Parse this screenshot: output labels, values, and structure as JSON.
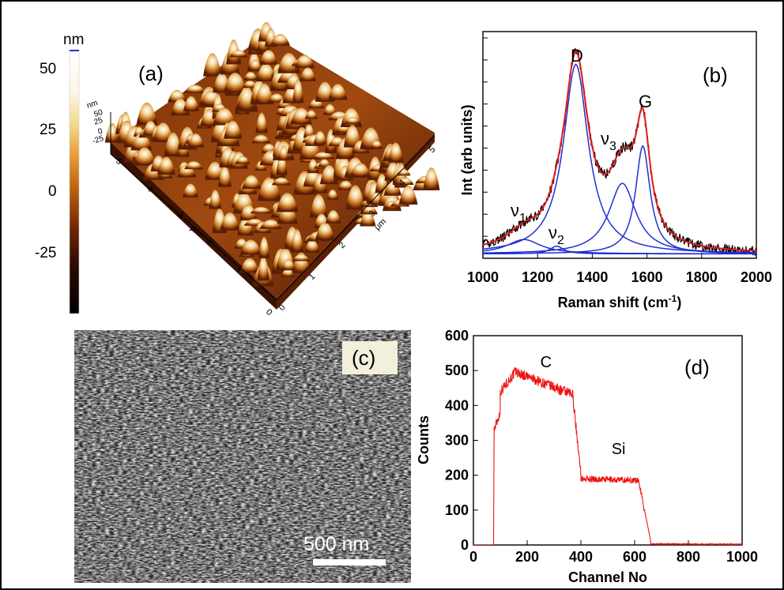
{
  "colors": {
    "afm_colormap": [
      "#000000",
      "#3a0e02",
      "#7a2c05",
      "#b85a10",
      "#e3922e",
      "#f7d27a",
      "#fffbe6",
      "#ffffff"
    ],
    "fit_blue": "#1f2fd6",
    "envelope_red": "#e01b1b",
    "raw_black": "#000000",
    "rbs_red": "#ee1111"
  },
  "panel_a": {
    "label": "(a)",
    "colorbar": {
      "unit": "nm",
      "ticks": [
        "50",
        "25",
        "0",
        "-25"
      ]
    },
    "surface_z_unit": "nm",
    "surface_z_ticks": [
      "50",
      "25",
      "0",
      "-25"
    ],
    "axis_unit_left": "μm",
    "axis_unit_right": "μm",
    "left_axis_ticks": [
      "5",
      "4",
      "3",
      "2",
      "1",
      "0"
    ],
    "right_axis_ticks": [
      "5",
      "4",
      "3",
      "2",
      "1",
      "0"
    ]
  },
  "panel_c": {
    "label": "(c)",
    "scale_bar": "500 nm"
  },
  "chart_data": [
    {
      "id": "b",
      "type": "line",
      "panel_label": "(b)",
      "xlabel": "Raman shift (cm",
      "xlabel_sup": "-1",
      "xlabel_end": ")",
      "ylabel": "Int (arb units)",
      "xlim": [
        1000,
        2000
      ],
      "ylim": [
        0,
        1.0
      ],
      "x_ticks": [
        "1000",
        "1200",
        "1400",
        "1600",
        "1800",
        "2000"
      ],
      "y_ticks_values": [
        0.1,
        0.2,
        0.3,
        0.4,
        0.5,
        0.6,
        0.7,
        0.8,
        0.9,
        1.0
      ],
      "peaks": [
        {
          "label": "ν",
          "sub": "1",
          "center": 1150,
          "amp": 0.065,
          "width": 75
        },
        {
          "label": "ν",
          "sub": "2",
          "center": 1270,
          "amp": 0.035,
          "width": 30
        },
        {
          "label": "D",
          "sub": "",
          "center": 1340,
          "amp": 0.86,
          "width": 55
        },
        {
          "label": "ν",
          "sub": "3",
          "center": 1510,
          "amp": 0.32,
          "width": 60
        },
        {
          "label": "G",
          "sub": "",
          "center": 1585,
          "amp": 0.49,
          "width": 32
        }
      ],
      "baseline": 0.02
    },
    {
      "id": "d",
      "type": "line",
      "panel_label": "(d)",
      "xlabel": "Channel No",
      "ylabel": "Counts",
      "xlim": [
        0,
        1000
      ],
      "ylim": [
        0,
        600
      ],
      "x_ticks": [
        0,
        200,
        400,
        600,
        800,
        1000
      ],
      "y_ticks": [
        0,
        100,
        200,
        300,
        400,
        500,
        600
      ],
      "annotations": [
        {
          "text": "C",
          "x": 270,
          "y": 510
        },
        {
          "text": "Si",
          "x": 540,
          "y": 260
        }
      ],
      "segments": [
        {
          "x0": 75,
          "x1": 76,
          "y0": 0,
          "y1": 0
        },
        {
          "x0": 77,
          "x1": 100,
          "y0": 330,
          "y1": 380
        },
        {
          "x0": 100,
          "x1": 160,
          "y0": 440,
          "y1": 500
        },
        {
          "x0": 160,
          "x1": 370,
          "y0": 495,
          "y1": 430
        },
        {
          "x0": 370,
          "x1": 400,
          "y0": 430,
          "y1": 200
        },
        {
          "x0": 400,
          "x1": 615,
          "y0": 190,
          "y1": 185
        },
        {
          "x0": 615,
          "x1": 660,
          "y0": 185,
          "y1": 10
        },
        {
          "x0": 660,
          "x1": 1000,
          "y0": 3,
          "y1": 2
        }
      ]
    }
  ]
}
